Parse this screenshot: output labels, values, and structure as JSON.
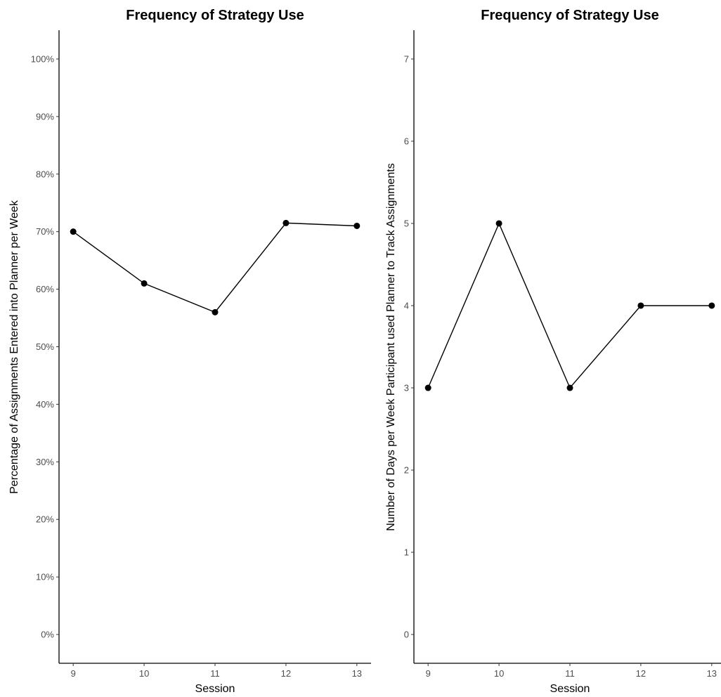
{
  "chart_data": [
    {
      "type": "line",
      "title": "Frequency of Strategy Use",
      "xlabel": "Session",
      "ylabel": "Percentage of Assignments Entered into Planner per Week",
      "x": [
        9,
        10,
        11,
        12,
        13
      ],
      "x_tick_labels": [
        "9",
        "10",
        "11",
        "12",
        "13"
      ],
      "xlim": [
        8.8,
        13.2
      ],
      "y_tick_values": [
        0,
        10,
        20,
        30,
        40,
        50,
        60,
        70,
        80,
        90,
        100
      ],
      "y_tick_labels": [
        "0%",
        "10%",
        "20%",
        "30%",
        "40%",
        "50%",
        "60%",
        "70%",
        "80%",
        "90%",
        "100%"
      ],
      "ylim": [
        -5,
        105
      ],
      "grid": false,
      "series": [
        {
          "values": [
            70,
            61,
            56,
            71.5,
            71
          ]
        }
      ]
    },
    {
      "type": "line",
      "title": "Frequency of Strategy Use",
      "xlabel": "Session",
      "ylabel": "Number of Days per Week Participant used Planner to Track Assignments",
      "x": [
        9,
        10,
        11,
        12,
        13
      ],
      "x_tick_labels": [
        "9",
        "10",
        "11",
        "12",
        "13"
      ],
      "xlim": [
        8.8,
        13.2
      ],
      "y_tick_values": [
        0,
        1,
        2,
        3,
        4,
        5,
        6,
        7
      ],
      "y_tick_labels": [
        "0",
        "1",
        "2",
        "3",
        "4",
        "5",
        "6",
        "7"
      ],
      "ylim": [
        -0.35,
        7.35
      ],
      "grid": false,
      "series": [
        {
          "values": [
            3,
            5,
            3,
            4,
            4
          ]
        }
      ]
    }
  ]
}
